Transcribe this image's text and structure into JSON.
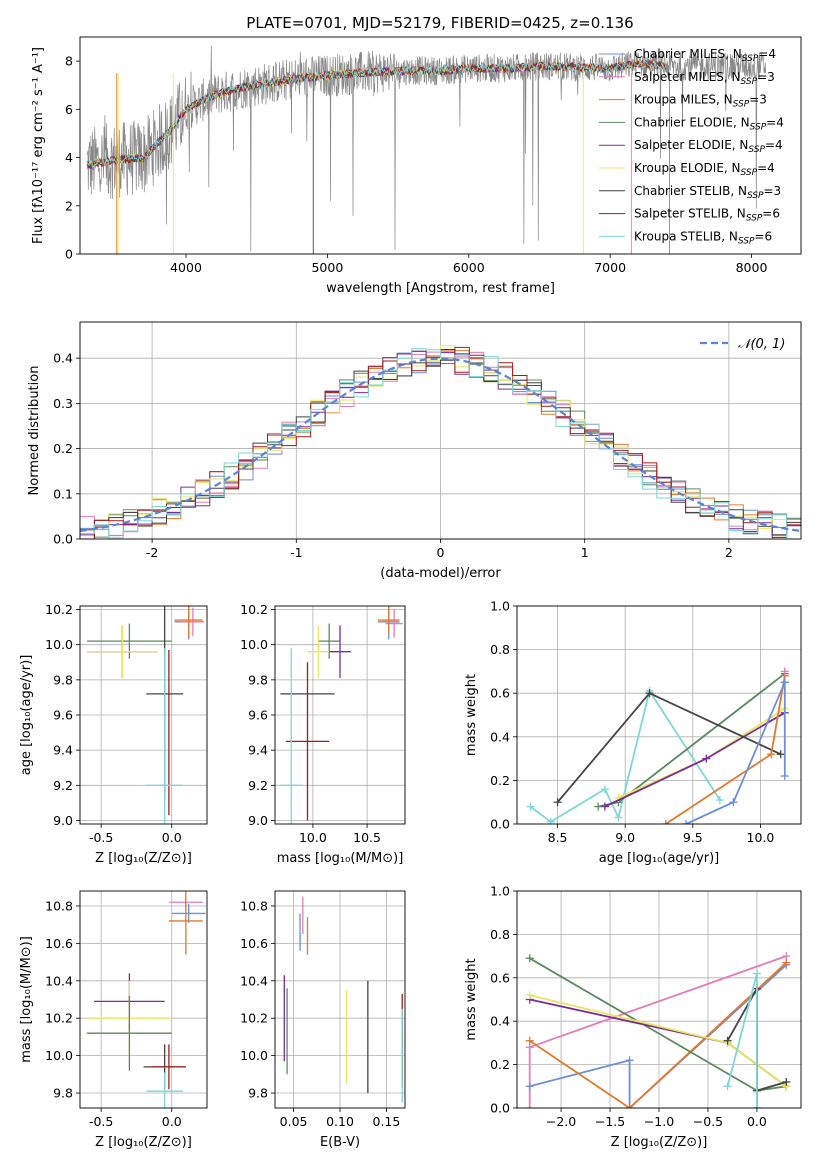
{
  "figure": {
    "title": "PLATE=0701, MJD=52179, FIBERID=0425, z=0.136"
  },
  "series": [
    {
      "name": "Chabrier MILES, N",
      "sub": "SSP",
      "tail": "=4",
      "color": "#6b8fd9"
    },
    {
      "name": "Salpeter MILES, N",
      "sub": "SSP",
      "tail": "=3",
      "color": "#e37cb8"
    },
    {
      "name": "Kroupa MILES, N",
      "sub": "SSP",
      "tail": "=3",
      "color": "#e07a2e"
    },
    {
      "name": "Chabrier ELODIE, N",
      "sub": "SSP",
      "tail": "=4",
      "color": "#5a8a5e"
    },
    {
      "name": "Salpeter ELODIE, N",
      "sub": "SSP",
      "tail": "=4",
      "color": "#7b2b9b"
    },
    {
      "name": "Kroupa ELODIE, N",
      "sub": "SSP",
      "tail": "=4",
      "color": "#e8e860"
    },
    {
      "name": "Chabrier STELIB, N",
      "sub": "SSP",
      "tail": "=3",
      "color": "#444444"
    },
    {
      "name": "Salpeter STELIB, N",
      "sub": "SSP",
      "tail": "=6",
      "color": "#a31c1c"
    },
    {
      "name": "Kroupa STELIB, N",
      "sub": "SSP",
      "tail": "=6",
      "color": "#7fd6d6"
    }
  ],
  "chart_data": [
    {
      "id": "spectrum",
      "type": "line",
      "xlabel": "wavelength [Angstrom, rest frame]",
      "ylabel": "Flux [fλ10⁻¹⁷ erg cm⁻² s⁻¹ A⁻¹]",
      "xlim": [
        3250,
        8350
      ],
      "ylim": [
        0,
        9
      ],
      "xticks": [
        4000,
        5000,
        6000,
        7000,
        8000
      ],
      "yticks": [
        0,
        2,
        4,
        6,
        8
      ],
      "data_color": "#888888",
      "model_anchor_x": [
        3300,
        3500,
        3700,
        3900,
        4000,
        4100,
        4200,
        4400,
        4600,
        4800,
        5000,
        5200,
        5500,
        5800,
        6000,
        6300,
        6500,
        7000,
        7200,
        7400
      ],
      "model_anchor_y": [
        3.7,
        3.9,
        4.0,
        5.2,
        6.0,
        6.3,
        6.6,
        6.9,
        7.1,
        7.3,
        7.4,
        7.5,
        7.6,
        7.6,
        7.7,
        7.7,
        7.8,
        7.7,
        7.9,
        7.8
      ],
      "data_x_range": [
        3300,
        8100
      ]
    },
    {
      "id": "residuals",
      "type": "bar",
      "xlabel": "(data-model)/error",
      "ylabel": "Normed distribution",
      "xlim": [
        -2.5,
        2.5
      ],
      "ylim": [
        0,
        0.48
      ],
      "xticks": [
        -2,
        -1,
        0,
        1,
        2
      ],
      "yticks": [
        0.0,
        0.1,
        0.2,
        0.3,
        0.4
      ],
      "reference_label": "𝒩(0, 1)",
      "reference_color": "#5b84d4",
      "bin_width": 0.1
    },
    {
      "id": "age_vs_Z",
      "type": "scatter",
      "xlabel": "Z [log₁₀(Z/Z⊙)]",
      "ylabel": "age  [log₁₀(age/yr)]",
      "xlim": [
        -0.65,
        0.25
      ],
      "ylim": [
        8.98,
        10.22
      ],
      "xticks": [
        -0.5,
        0.0
      ],
      "yticks": [
        9.0,
        9.2,
        9.4,
        9.6,
        9.8,
        10.0,
        10.2
      ],
      "bars": [
        {
          "s": 0,
          "x": 0.12,
          "y": 10.13,
          "xerr": 0.1,
          "yerr": 0.1
        },
        {
          "s": 1,
          "x": 0.15,
          "y": 10.13,
          "xerr": 0.08,
          "yerr": 0.08
        },
        {
          "s": 2,
          "x": 0.12,
          "y": 10.14,
          "xerr": 0.1,
          "yerr": 0.1
        },
        {
          "s": 3,
          "x": -0.3,
          "y": 10.02,
          "xerr": 0.3,
          "yerr": 0.1
        },
        {
          "s": 4,
          "x": -0.35,
          "y": 9.96,
          "xerr": 0.25,
          "yerr": 0.15
        },
        {
          "s": 5,
          "x": -0.35,
          "y": 9.96,
          "xerr": 0.25,
          "yerr": 0.15
        },
        {
          "s": 6,
          "x": -0.05,
          "y": 9.72,
          "xerr": 0.13,
          "yerr": 0.6
        },
        {
          "s": 7,
          "x": -0.02,
          "y": 9.5,
          "xerr": 0.0,
          "yerr": 0.47
        },
        {
          "s": 8,
          "x": -0.05,
          "y": 9.2,
          "xerr": 0.13,
          "yerr": 0.78
        }
      ]
    },
    {
      "id": "age_vs_mass",
      "type": "scatter",
      "xlabel": "mass [log₁₀(M/M⊙)]",
      "ylabel": "",
      "xlim": [
        9.65,
        10.85
      ],
      "ylim": [
        8.98,
        10.22
      ],
      "xticks": [
        10.0,
        10.5
      ],
      "yticks": [
        9.0,
        9.2,
        9.4,
        9.6,
        9.8,
        10.0,
        10.2
      ],
      "bars": [
        {
          "s": 0,
          "x": 10.7,
          "y": 10.13,
          "xerr": 0.1,
          "yerr": 0.1
        },
        {
          "s": 1,
          "x": 10.75,
          "y": 10.12,
          "xerr": 0.08,
          "yerr": 0.08
        },
        {
          "s": 2,
          "x": 10.7,
          "y": 10.14,
          "xerr": 0.1,
          "yerr": 0.08
        },
        {
          "s": 3,
          "x": 10.15,
          "y": 10.02,
          "xerr": 0.1,
          "yerr": 0.1
        },
        {
          "s": 4,
          "x": 10.25,
          "y": 9.96,
          "xerr": 0.1,
          "yerr": 0.15
        },
        {
          "s": 5,
          "x": 10.05,
          "y": 9.96,
          "xerr": 0.1,
          "yerr": 0.15
        },
        {
          "s": 6,
          "x": 9.95,
          "y": 9.72,
          "xerr": 0.25,
          "yerr": 0.0
        },
        {
          "s": 7,
          "x": 9.95,
          "y": 9.45,
          "xerr": 0.2,
          "yerr": 0.45
        },
        {
          "s": 8,
          "x": 9.8,
          "y": 9.2,
          "xerr": 0.1,
          "yerr": 0.78
        }
      ]
    },
    {
      "id": "mw_vs_age",
      "type": "line",
      "xlabel": "age  [log₁₀(age/yr)]",
      "ylabel": "mass weight",
      "xlim": [
        8.2,
        10.3
      ],
      "ylim": [
        0,
        1.0
      ],
      "xticks": [
        8.5,
        9.0,
        9.5,
        10.0
      ],
      "yticks": [
        0.0,
        0.2,
        0.4,
        0.6,
        0.8,
        1.0
      ],
      "lines": [
        {
          "s": 8,
          "x": [
            8.3,
            8.45,
            8.85,
            8.95,
            9.18,
            9.7
          ],
          "y": [
            0.08,
            0.01,
            0.16,
            0.03,
            0.61,
            0.11
          ]
        },
        {
          "s": 3,
          "x": [
            8.8,
            8.95,
            10.18
          ],
          "y": [
            0.08,
            0.1,
            0.69
          ]
        },
        {
          "s": 5,
          "x": [
            8.95,
            9.6,
            10.18
          ],
          "y": [
            0.12,
            0.3,
            0.53
          ]
        },
        {
          "s": 4,
          "x": [
            8.85,
            9.6,
            10.18
          ],
          "y": [
            0.08,
            0.3,
            0.51
          ]
        },
        {
          "s": 6,
          "x": [
            8.5,
            9.18,
            10.15
          ],
          "y": [
            0.1,
            0.6,
            0.32
          ]
        },
        {
          "s": 2,
          "x": [
            9.3,
            10.08,
            10.18
          ],
          "y": [
            0.0,
            0.32,
            0.68
          ]
        },
        {
          "s": 0,
          "x": [
            9.45,
            9.8,
            10.18
          ],
          "y": [
            0.0,
            0.1,
            0.65
          ]
        },
        {
          "s": 0,
          "x": [
            10.18,
            10.18
          ],
          "y": [
            0.65,
            0.22
          ]
        },
        {
          "s": 1,
          "x": [
            10.18
          ],
          "y": [
            0.7
          ]
        }
      ]
    },
    {
      "id": "mass_vs_Z",
      "type": "scatter",
      "xlabel": "Z [log₁₀(Z/Z⊙)]",
      "ylabel": "mass [log₁₀(M/M⊙)]",
      "xlim": [
        -0.65,
        0.25
      ],
      "ylim": [
        9.72,
        10.88
      ],
      "xticks": [
        -0.5,
        0.0
      ],
      "yticks": [
        9.8,
        10.0,
        10.2,
        10.4,
        10.6,
        10.8
      ],
      "bars": [
        {
          "s": 1,
          "x": 0.1,
          "y": 10.82,
          "xerr": 0.12,
          "yerr": 0.05
        },
        {
          "s": 0,
          "x": 0.12,
          "y": 10.76,
          "xerr": 0.12,
          "yerr": 0.05
        },
        {
          "s": 2,
          "x": 0.1,
          "y": 10.72,
          "xerr": 0.12,
          "yerr": 0.18
        },
        {
          "s": 4,
          "x": -0.3,
          "y": 10.29,
          "xerr": 0.25,
          "yerr": 0.15
        },
        {
          "s": 5,
          "x": -0.3,
          "y": 10.2,
          "xerr": 0.3,
          "yerr": 0.2
        },
        {
          "s": 3,
          "x": -0.3,
          "y": 10.12,
          "xerr": 0.3,
          "yerr": 0.2
        },
        {
          "s": 6,
          "x": -0.05,
          "y": 9.94,
          "xerr": 0.15,
          "yerr": 0.12
        },
        {
          "s": 7,
          "x": -0.02,
          "y": 9.94,
          "xerr": 0.12,
          "yerr": 0.12
        },
        {
          "s": 8,
          "x": -0.05,
          "y": 9.81,
          "xerr": 0.13,
          "yerr": 0.1
        }
      ]
    },
    {
      "id": "mass_vs_ebv",
      "type": "scatter",
      "xlabel": "E(B-V)",
      "ylabel": "",
      "xlim": [
        0.03,
        0.17
      ],
      "ylim": [
        9.72,
        10.88
      ],
      "xticks": [
        0.05,
        0.1,
        0.15
      ],
      "yticks": [
        9.8,
        10.0,
        10.2,
        10.4,
        10.6,
        10.8
      ],
      "bars": [
        {
          "s": 1,
          "x": 0.06,
          "y": 10.75,
          "yerr": 0.1
        },
        {
          "s": 0,
          "x": 0.057,
          "y": 10.66,
          "yerr": 0.1
        },
        {
          "s": 2,
          "x": 0.065,
          "y": 10.64,
          "yerr": 0.1
        },
        {
          "s": 4,
          "x": 0.04,
          "y": 10.2,
          "yerr": 0.23
        },
        {
          "s": 3,
          "x": 0.043,
          "y": 10.13,
          "yerr": 0.23
        },
        {
          "s": 5,
          "x": 0.107,
          "y": 10.1,
          "yerr": 0.25
        },
        {
          "s": 6,
          "x": 0.13,
          "y": 10.1,
          "yerr": 0.3
        },
        {
          "s": 7,
          "x": 0.167,
          "y": 10.08,
          "yerr": 0.25
        },
        {
          "s": 8,
          "x": 0.167,
          "y": 10.0,
          "yerr": 0.25
        }
      ]
    },
    {
      "id": "mw_vs_Z",
      "type": "line",
      "xlabel": "Z [log₁₀(Z/Z⊙)]",
      "ylabel": "mass weight",
      "xlim": [
        -2.45,
        0.45
      ],
      "ylim": [
        0,
        1.0
      ],
      "xticks": [
        -2.0,
        -1.5,
        -1.0,
        -0.5,
        0.0
      ],
      "yticks": [
        0.0,
        0.2,
        0.4,
        0.6,
        0.8,
        1.0
      ],
      "lines": [
        {
          "s": 1,
          "x": [
            -2.32,
            -2.32,
            0.3
          ],
          "y": [
            0.0,
            0.28,
            0.7
          ]
        },
        {
          "s": 0,
          "x": [
            -2.32,
            -1.3,
            -1.3,
            0.3
          ],
          "y": [
            0.1,
            0.22,
            0.0,
            0.66
          ]
        },
        {
          "s": 2,
          "x": [
            -2.32,
            -1.3,
            0.3
          ],
          "y": [
            0.31,
            0.0,
            0.67
          ]
        },
        {
          "s": 3,
          "x": [
            -2.32,
            0.0,
            0.3
          ],
          "y": [
            0.69,
            0.08,
            0.1
          ]
        },
        {
          "s": 4,
          "x": [
            -2.32,
            -0.3,
            0.3
          ],
          "y": [
            0.5,
            0.3,
            0.1
          ]
        },
        {
          "s": 5,
          "x": [
            -2.32,
            -0.3,
            0.3
          ],
          "y": [
            0.52,
            0.3,
            0.1
          ]
        },
        {
          "s": 6,
          "x": [
            -0.3,
            0.0,
            0.0,
            0.3
          ],
          "y": [
            0.31,
            0.55,
            0.08,
            0.12
          ]
        },
        {
          "s": 7,
          "x": [
            0.0,
            0.0
          ],
          "y": [
            0.55,
            0.0
          ]
        },
        {
          "s": 8,
          "x": [
            -0.3,
            0.0,
            0.0
          ],
          "y": [
            0.1,
            0.62,
            0.0
          ]
        }
      ]
    }
  ]
}
